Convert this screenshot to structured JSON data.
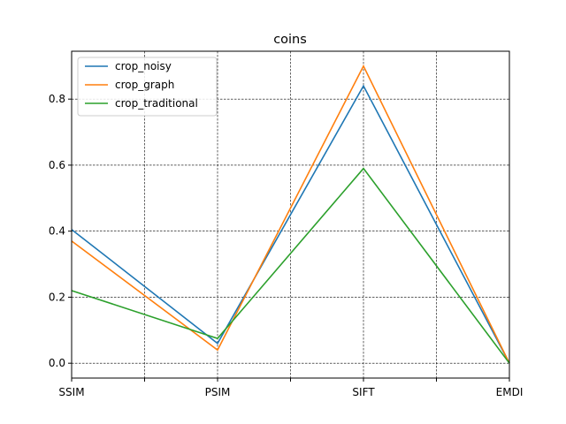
{
  "chart_data": {
    "type": "line",
    "title": "coins",
    "xlabel": "",
    "ylabel": "",
    "categories": [
      "SSIM",
      "PSIM",
      "SIFT",
      "EMDI"
    ],
    "series": [
      {
        "name": "crop_noisy",
        "color": "#1f77b4",
        "values": [
          0.405,
          0.06,
          0.84,
          0.0
        ]
      },
      {
        "name": "crop_graph",
        "color": "#ff7f0e",
        "values": [
          0.37,
          0.04,
          0.9,
          0.0
        ]
      },
      {
        "name": "crop_traditional",
        "color": "#2ca02c",
        "values": [
          0.22,
          0.075,
          0.59,
          0.0
        ]
      }
    ],
    "yticks": [
      0.0,
      0.2,
      0.4,
      0.6,
      0.8
    ],
    "ytick_labels": [
      "0.0",
      "0.2",
      "0.4",
      "0.6",
      "0.8"
    ],
    "ylim": [
      -0.045,
      0.945
    ],
    "grid": true,
    "grid_style": "dashed",
    "legend_position": "top-left"
  }
}
